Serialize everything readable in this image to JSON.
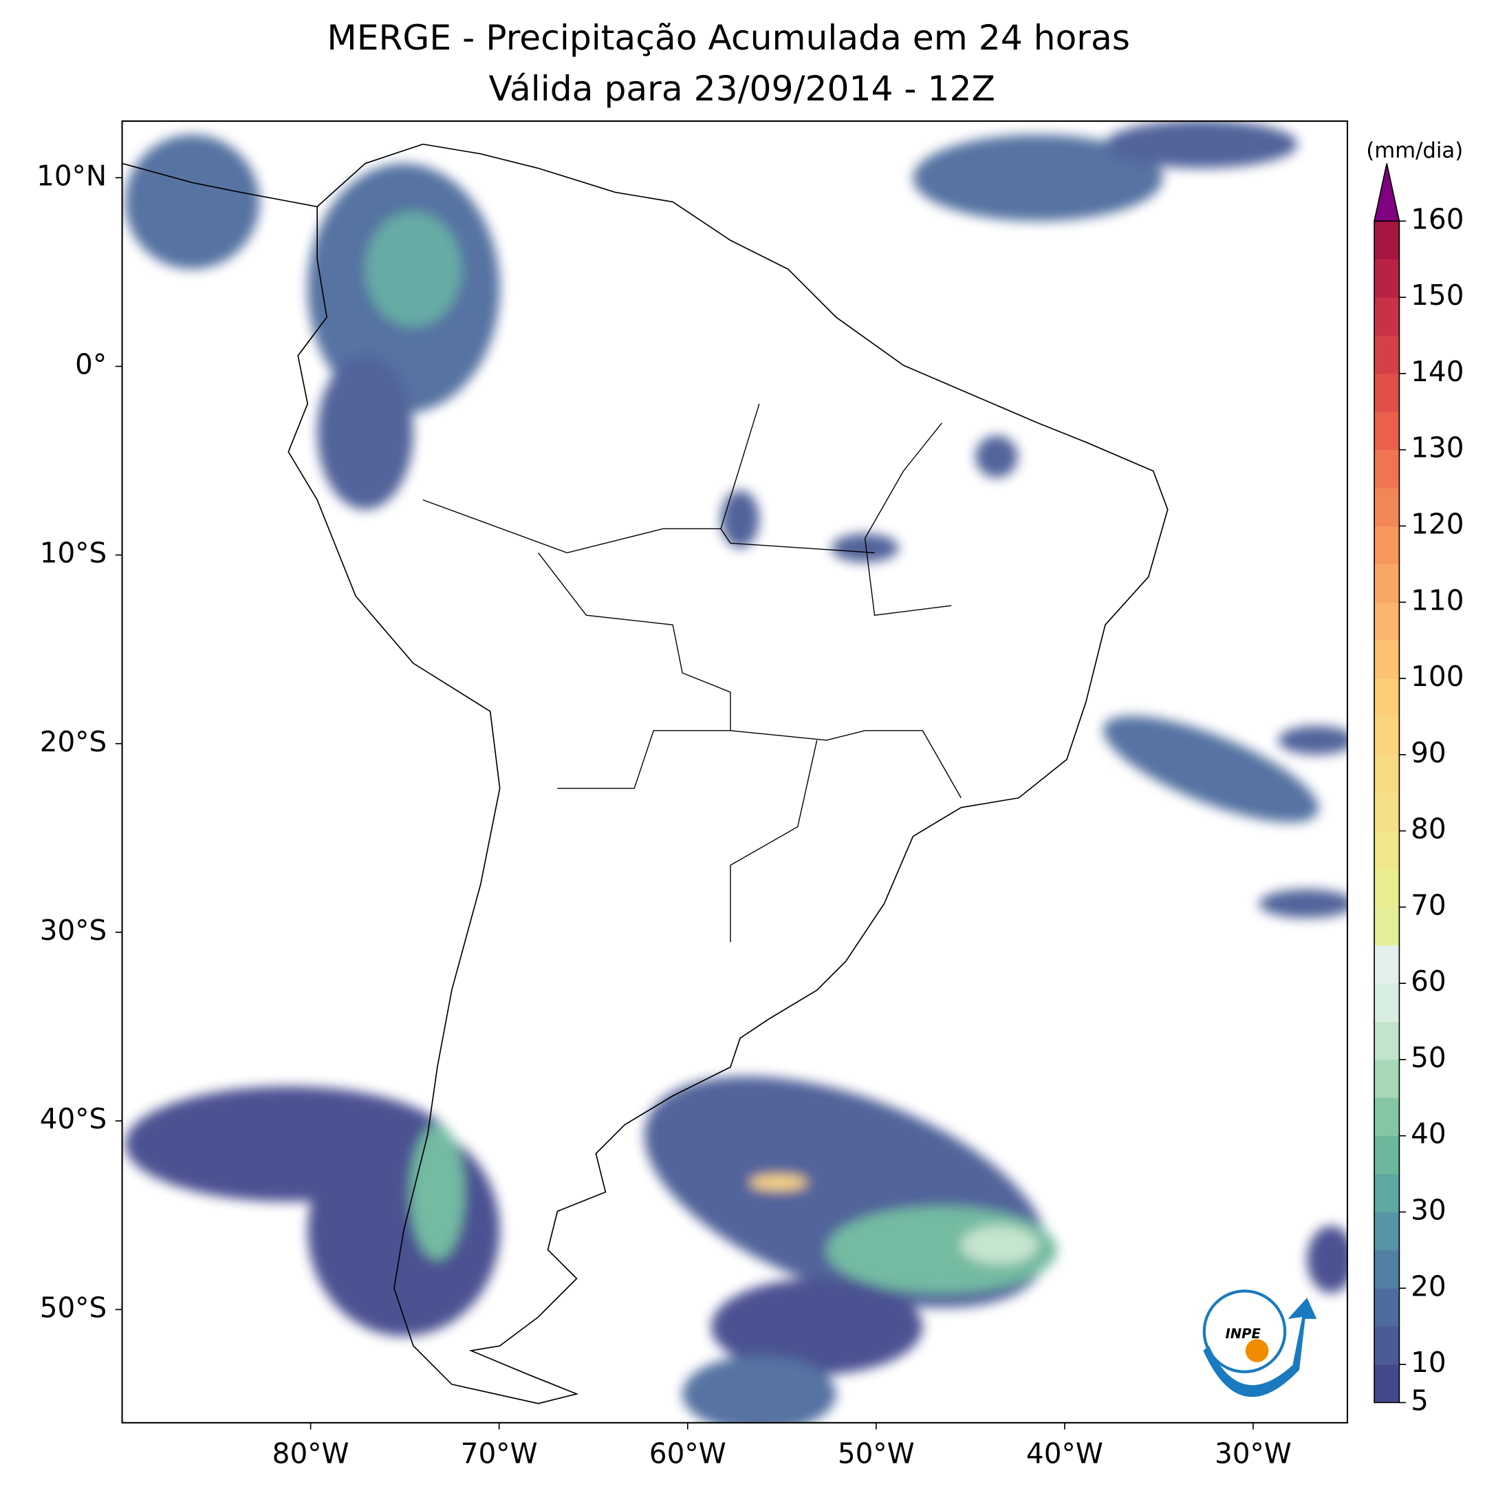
{
  "chart_data": {
    "type": "map",
    "title": "MERGE - Precipitação Acumulada em 24 horas",
    "subtitle": "Válida para 23/09/2014 - 12Z",
    "xlim": [
      -90,
      -25
    ],
    "ylim": [
      -56,
      13
    ],
    "xticks": [
      {
        "value": -80,
        "label": "80°W"
      },
      {
        "value": -70,
        "label": "70°W"
      },
      {
        "value": -60,
        "label": "60°W"
      },
      {
        "value": -50,
        "label": "50°W"
      },
      {
        "value": -40,
        "label": "40°W"
      },
      {
        "value": -30,
        "label": "30°W"
      }
    ],
    "yticks": [
      {
        "value": 10,
        "label": "10°N"
      },
      {
        "value": 0,
        "label": "0°"
      },
      {
        "value": -10,
        "label": "10°S"
      },
      {
        "value": -20,
        "label": "20°S"
      },
      {
        "value": -30,
        "label": "30°S"
      },
      {
        "value": -40,
        "label": "40°S"
      },
      {
        "value": -50,
        "label": "50°S"
      }
    ],
    "colorbar": {
      "label": "(mm/dia)",
      "levels": [
        5,
        10,
        15,
        20,
        25,
        30,
        35,
        40,
        45,
        50,
        55,
        60,
        65,
        70,
        75,
        80,
        85,
        90,
        95,
        100,
        105,
        110,
        115,
        120,
        125,
        130,
        135,
        140,
        145,
        150,
        155,
        160
      ],
      "colors": [
        "#434a8c",
        "#4a5b95",
        "#4e6c9d",
        "#5180a3",
        "#5795a6",
        "#5fa7a1",
        "#6db89d",
        "#85c7a2",
        "#a6d7b6",
        "#c3e4cc",
        "#d8eee2",
        "#e3f1ec",
        "#e4ee97",
        "#ebec92",
        "#f0e68c",
        "#f5e088",
        "#f8da83",
        "#fbd47e",
        "#fdcd78",
        "#fcc272",
        "#fbb56c",
        "#f9a765",
        "#f7975d",
        "#f48656",
        "#f07451",
        "#e9604b",
        "#e04f49",
        "#d54048",
        "#c93146",
        "#b92343",
        "#a51640"
      ],
      "extend_color": "#800080",
      "ticks": [
        5,
        10,
        20,
        30,
        40,
        50,
        60,
        70,
        80,
        90,
        100,
        110,
        120,
        130,
        140,
        150,
        160
      ]
    }
  }
}
